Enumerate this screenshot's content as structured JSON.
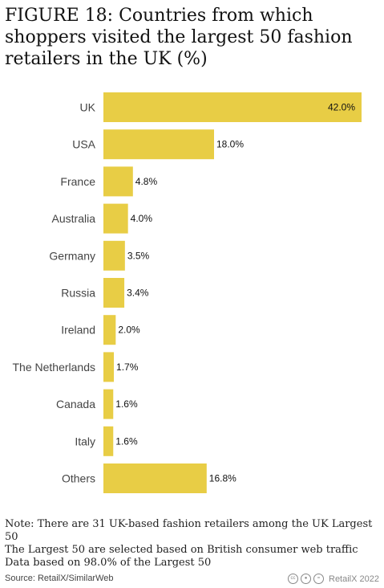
{
  "title": "FIGURE 18: Countries from which shoppers visited the largest 50 fashion retailers in the UK (%)",
  "notes": [
    "Note: There are 31 UK-based fashion retailers among the UK Largest 50",
    "The Largest 50 are selected based on British consumer web traffic",
    "Data based on 98.0% of the Largest 50"
  ],
  "footer": {
    "source": "Source: RetailX/SimilarWeb",
    "credit": "RetailX 2022",
    "icons": [
      "cc-icon",
      "by-icon",
      "nd-icon"
    ]
  },
  "colors": {
    "bar": "#e8cd45",
    "text": "#444444"
  },
  "chart_data": {
    "type": "bar",
    "orientation": "horizontal",
    "categories": [
      "UK",
      "USA",
      "France",
      "Australia",
      "Germany",
      "Russia",
      "Ireland",
      "The Netherlands",
      "Canada",
      "Italy",
      "Others"
    ],
    "values": [
      42.0,
      18.0,
      4.8,
      4.0,
      3.5,
      3.4,
      2.0,
      1.7,
      1.6,
      1.6,
      16.8
    ],
    "value_labels": [
      "42.0%",
      "18.0%",
      "4.8%",
      "4.0%",
      "3.5%",
      "3.4%",
      "2.0%",
      "1.7%",
      "1.6%",
      "1.6%",
      "16.8%"
    ],
    "xlim": [
      0,
      42
    ],
    "grid": false,
    "legend": "none"
  }
}
